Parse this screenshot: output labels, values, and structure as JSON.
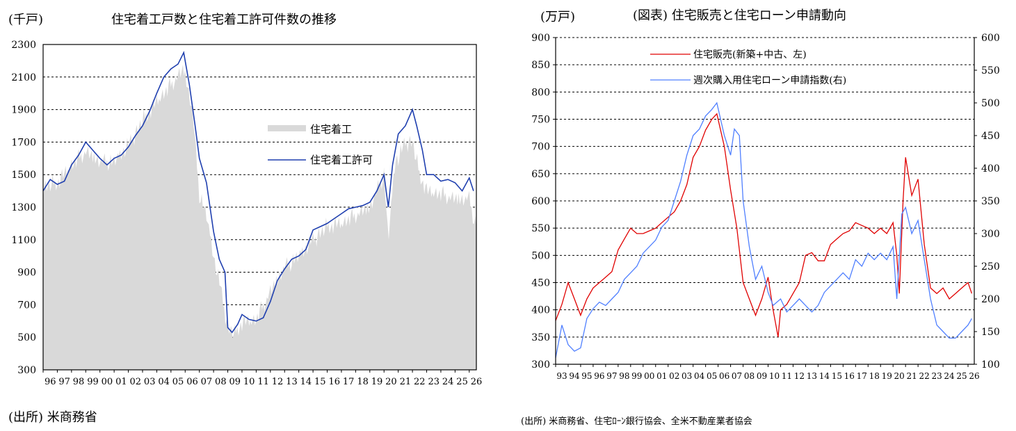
{
  "left": {
    "unit_label": "(千戸)",
    "title": "住宅着工戸数と住宅着工許可件数の推移",
    "source": "(出所) 米商務省",
    "legend": {
      "starts": "住宅着工",
      "permits": "住宅着工許可"
    }
  },
  "right": {
    "unit_label": "(万戸)",
    "title": "(図表) 住宅販売と住宅ローン申請動向",
    "source": "(出所) 米商務省、住宅ﾛｰﾝ銀行協会、全米不動産業者協会",
    "legend": {
      "sales": "住宅販売(新築+中古、左)",
      "apps": "週次購入用住宅ローン申請指数(右)"
    }
  },
  "chart_data": [
    {
      "type": "line",
      "y_range": [
        300,
        2300
      ],
      "y_ticks": [
        "300",
        "500",
        "700",
        "900",
        "1100",
        "1300",
        "1500",
        "1700",
        "1900",
        "2100",
        "2300"
      ],
      "x_range": [
        1996,
        2026.5
      ],
      "x_ticks": [
        "96",
        "97",
        "98",
        "99",
        "00",
        "01",
        "02",
        "03",
        "04",
        "05",
        "06",
        "07",
        "08",
        "09",
        "10",
        "11",
        "12",
        "13",
        "14",
        "15",
        "16",
        "17",
        "18",
        "19",
        "20",
        "21",
        "22",
        "23",
        "24",
        "25",
        "26"
      ],
      "grid": "horizontal dashed",
      "legend_position": "right-middle",
      "series": [
        {
          "name": "住宅着工",
          "style": "gray bars",
          "color": "#d9d9d9",
          "x": [
            1996,
            1997,
            1998,
            1999,
            2000,
            2001,
            2002,
            2003,
            2004,
            2005,
            2005.9,
            2006.5,
            2007,
            2007.5,
            2008,
            2008.5,
            2009,
            2009.5,
            2010,
            2011,
            2012,
            2013,
            2014,
            2015,
            2016,
            2017,
            2018,
            2019,
            2020,
            2020.3,
            2020.8,
            2021,
            2021.5,
            2022,
            2022.5,
            2023,
            2024,
            2025,
            2026,
            2026.4
          ],
          "values": [
            1420,
            1450,
            1560,
            1640,
            1580,
            1580,
            1680,
            1830,
            1950,
            2050,
            2150,
            1900,
            1380,
            1250,
            1000,
            800,
            560,
            520,
            590,
            610,
            780,
            930,
            1000,
            1100,
            1180,
            1200,
            1250,
            1300,
            1500,
            1100,
            1600,
            1600,
            1700,
            1700,
            1500,
            1400,
            1380,
            1350,
            1350,
            1200
          ]
        },
        {
          "name": "住宅着工許可",
          "style": "line",
          "color": "#1f3faf",
          "x": [
            1996,
            1996.5,
            1997,
            1997.5,
            1998,
            1998.5,
            1999,
            1999.5,
            2000,
            2000.5,
            2001,
            2001.5,
            2002,
            2002.5,
            2003,
            2003.5,
            2004,
            2004.5,
            2005,
            2005.5,
            2005.9,
            2006.3,
            2006.7,
            2007,
            2007.5,
            2008,
            2008.4,
            2008.8,
            2009,
            2009.3,
            2009.7,
            2010,
            2010.5,
            2011,
            2011.5,
            2012,
            2012.5,
            2013,
            2013.5,
            2014,
            2014.5,
            2015,
            2015.5,
            2016,
            2016.5,
            2017,
            2017.5,
            2018,
            2018.5,
            2019,
            2019.5,
            2020,
            2020.3,
            2020.6,
            2021,
            2021.5,
            2022,
            2022.3,
            2022.7,
            2023,
            2023.5,
            2024,
            2024.5,
            2025,
            2025.5,
            2026,
            2026.3
          ],
          "values": [
            1400,
            1470,
            1440,
            1460,
            1560,
            1620,
            1700,
            1650,
            1600,
            1560,
            1600,
            1620,
            1670,
            1740,
            1800,
            1890,
            2000,
            2100,
            2150,
            2180,
            2250,
            2050,
            1800,
            1600,
            1450,
            1150,
            980,
            900,
            560,
            530,
            580,
            640,
            610,
            600,
            620,
            720,
            850,
            920,
            980,
            1000,
            1040,
            1160,
            1180,
            1200,
            1230,
            1260,
            1290,
            1300,
            1310,
            1330,
            1400,
            1500,
            1300,
            1560,
            1750,
            1800,
            1900,
            1800,
            1650,
            1500,
            1500,
            1460,
            1470,
            1450,
            1400,
            1480,
            1400
          ]
        }
      ]
    },
    {
      "type": "line",
      "y_range": [
        300,
        900
      ],
      "y_ticks": [
        "300",
        "350",
        "400",
        "450",
        "500",
        "550",
        "600",
        "650",
        "700",
        "750",
        "800",
        "850",
        "900"
      ],
      "y2_range": [
        100,
        600
      ],
      "y2_ticks": [
        "100",
        "150",
        "200",
        "250",
        "300",
        "350",
        "400",
        "450",
        "500",
        "550",
        "600"
      ],
      "x_range": [
        1993,
        2026.5
      ],
      "x_ticks": [
        "93",
        "94",
        "95",
        "96",
        "97",
        "98",
        "99",
        "00",
        "01",
        "02",
        "03",
        "04",
        "05",
        "06",
        "07",
        "08",
        "09",
        "10",
        "11",
        "12",
        "13",
        "14",
        "15",
        "16",
        "17",
        "18",
        "19",
        "20",
        "21",
        "22",
        "23",
        "24",
        "25",
        "26"
      ],
      "grid": "horizontal dashed",
      "legend_position": "top-left",
      "series": [
        {
          "name": "住宅販売(新築+中古、左)",
          "axis": "left",
          "color": "#e00000",
          "x": [
            1993,
            1993.5,
            1994,
            1994.5,
            1995,
            1995.5,
            1996,
            1996.5,
            1997,
            1997.5,
            1998,
            1998.5,
            1999,
            1999.5,
            2000,
            2000.5,
            2001,
            2001.5,
            2002,
            2002.5,
            2003,
            2003.5,
            2004,
            2004.5,
            2005,
            2005.5,
            2005.9,
            2006.5,
            2007,
            2007.5,
            2008,
            2008.5,
            2009,
            2009.5,
            2010,
            2010.4,
            2010.8,
            2011,
            2011.5,
            2012,
            2012.5,
            2013,
            2013.5,
            2014,
            2014.5,
            2015,
            2015.5,
            2016,
            2016.5,
            2017,
            2017.5,
            2018,
            2018.5,
            2019,
            2019.5,
            2020,
            2020.3,
            2020.5,
            2020.8,
            2021,
            2021.5,
            2022,
            2022.5,
            2023,
            2023.5,
            2024,
            2024.5,
            2025,
            2025.5,
            2026,
            2026.3
          ],
          "values": [
            380,
            410,
            450,
            420,
            390,
            420,
            440,
            450,
            460,
            470,
            510,
            530,
            550,
            540,
            540,
            545,
            550,
            560,
            570,
            580,
            600,
            630,
            680,
            700,
            730,
            750,
            760,
            700,
            620,
            550,
            450,
            420,
            390,
            420,
            460,
            400,
            350,
            400,
            410,
            430,
            450,
            500,
            505,
            490,
            490,
            520,
            530,
            540,
            545,
            560,
            555,
            550,
            540,
            550,
            540,
            560,
            500,
            430,
            600,
            680,
            610,
            640,
            520,
            440,
            430,
            440,
            420,
            430,
            440,
            450,
            430
          ]
        },
        {
          "name": "週次購入用住宅ローン申請指数(右)",
          "axis": "right",
          "color": "#4f7fff",
          "x": [
            1993,
            1993.5,
            1994,
            1994.5,
            1995,
            1995.5,
            1996,
            1996.5,
            1997,
            1997.5,
            1998,
            1998.5,
            1999,
            1999.5,
            2000,
            2000.5,
            2001,
            2001.5,
            2002,
            2002.5,
            2003,
            2003.5,
            2004,
            2004.5,
            2005,
            2005.5,
            2005.9,
            2006.5,
            2007,
            2007.3,
            2007.7,
            2008,
            2008.5,
            2009,
            2009.5,
            2010,
            2010.4,
            2011,
            2011.5,
            2012,
            2012.5,
            2013,
            2013.5,
            2014,
            2014.5,
            2015,
            2015.5,
            2016,
            2016.5,
            2017,
            2017.5,
            2018,
            2018.5,
            2019,
            2019.5,
            2020,
            2020.3,
            2020.7,
            2021,
            2021.5,
            2022,
            2022.5,
            2023,
            2023.5,
            2024,
            2024.5,
            2025,
            2025.5,
            2026,
            2026.3
          ],
          "values": [
            110,
            160,
            130,
            120,
            125,
            170,
            185,
            195,
            190,
            200,
            210,
            230,
            240,
            250,
            270,
            280,
            290,
            310,
            320,
            350,
            380,
            420,
            450,
            460,
            480,
            490,
            500,
            450,
            420,
            460,
            450,
            350,
            280,
            230,
            250,
            210,
            190,
            200,
            180,
            190,
            200,
            190,
            180,
            190,
            210,
            220,
            230,
            240,
            230,
            260,
            250,
            270,
            260,
            270,
            260,
            280,
            200,
            330,
            340,
            300,
            320,
            260,
            200,
            160,
            150,
            140,
            140,
            150,
            160,
            170
          ]
        }
      ]
    }
  ]
}
